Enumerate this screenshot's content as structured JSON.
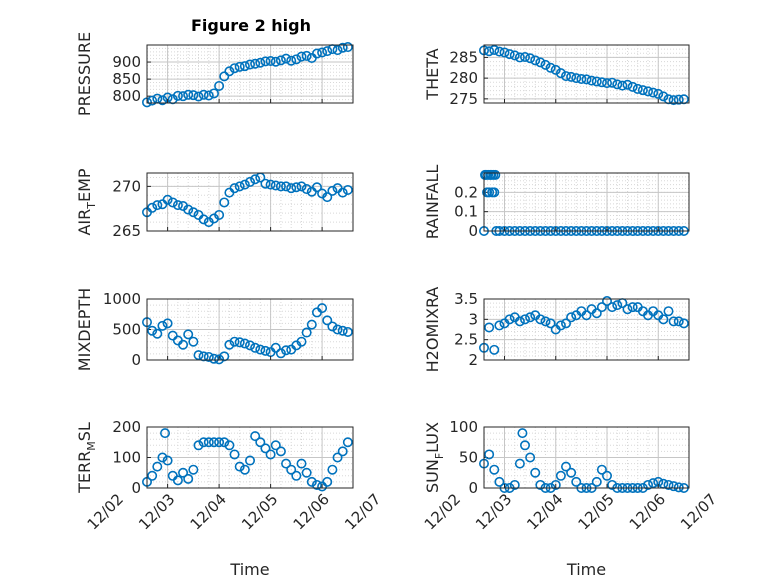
{
  "chart_data": {
    "type": "scatter",
    "title": "Figure 2 high",
    "marker": "o",
    "marker_color": "#0072BD",
    "grid": true,
    "minor_grid": true,
    "x_tick_labels": [
      "12/02",
      "12/03",
      "12/04",
      "12/05",
      "12/06",
      "12/07"
    ],
    "xlabel": "Time",
    "panels": [
      {
        "id": "pressure",
        "ylabel": "PRESSURE",
        "ylim": [
          780,
          950
        ],
        "yticks": [
          800,
          850,
          900
        ],
        "x": [
          2.6,
          2.7,
          2.8,
          2.9,
          3.0,
          3.1,
          3.2,
          3.3,
          3.4,
          3.5,
          3.6,
          3.7,
          3.8,
          3.9,
          4.0,
          4.1,
          4.2,
          4.3,
          4.4,
          4.5,
          4.6,
          4.7,
          4.8,
          4.9,
          5.0,
          5.1,
          5.2,
          5.3,
          5.4,
          5.5,
          5.6,
          5.7,
          5.8,
          5.9,
          6.0,
          6.1,
          6.2,
          6.3,
          6.4,
          6.5
        ],
        "y": [
          782,
          787,
          793,
          788,
          796,
          791,
          801,
          800,
          804,
          803,
          799,
          804,
          802,
          808,
          830,
          858,
          873,
          882,
          886,
          888,
          893,
          895,
          898,
          902,
          903,
          901,
          905,
          910,
          904,
          908,
          916,
          918,
          912,
          925,
          928,
          932,
          938,
          935,
          942,
          944
        ]
      },
      {
        "id": "theta",
        "ylabel": "THETA",
        "ylim": [
          274,
          288
        ],
        "yticks": [
          275,
          280,
          285
        ],
        "x": [
          2.6,
          2.7,
          2.8,
          2.9,
          3.0,
          3.1,
          3.2,
          3.3,
          3.4,
          3.5,
          3.6,
          3.7,
          3.8,
          3.9,
          4.0,
          4.1,
          4.2,
          4.3,
          4.4,
          4.5,
          4.6,
          4.7,
          4.8,
          4.9,
          5.0,
          5.1,
          5.2,
          5.3,
          5.4,
          5.5,
          5.6,
          5.7,
          5.8,
          5.9,
          6.0,
          6.1,
          6.2,
          6.3,
          6.4,
          6.5
        ],
        "y": [
          286.7,
          286.5,
          286.8,
          286.4,
          286.2,
          285.8,
          285.5,
          285.0,
          285.1,
          284.8,
          284.3,
          283.8,
          283.2,
          282.5,
          282.0,
          281.2,
          280.5,
          280.3,
          280.0,
          279.8,
          279.7,
          279.4,
          279.2,
          279.0,
          278.8,
          278.9,
          278.5,
          278.2,
          278.4,
          277.9,
          277.4,
          277.1,
          276.8,
          276.5,
          276.2,
          275.6,
          274.9,
          274.7,
          274.8,
          274.9
        ]
      },
      {
        "id": "air_temp",
        "ylabel": "AIR_TEMP",
        "ylabel_parts": [
          "AIR",
          "T",
          "EMP"
        ],
        "ylim": [
          265,
          271.5
        ],
        "yticks": [
          265,
          270
        ],
        "x": [
          2.6,
          2.7,
          2.8,
          2.9,
          3.0,
          3.1,
          3.2,
          3.3,
          3.4,
          3.5,
          3.6,
          3.7,
          3.8,
          3.9,
          4.0,
          4.1,
          4.2,
          4.3,
          4.4,
          4.5,
          4.6,
          4.7,
          4.8,
          4.9,
          5.0,
          5.1,
          5.2,
          5.3,
          5.4,
          5.5,
          5.6,
          5.7,
          5.8,
          5.9,
          6.0,
          6.1,
          6.2,
          6.3,
          6.4,
          6.5
        ],
        "y": [
          267.1,
          267.6,
          267.9,
          268.0,
          268.5,
          268.2,
          267.9,
          267.8,
          267.4,
          267.1,
          266.8,
          266.3,
          266.0,
          266.4,
          266.8,
          268.2,
          269.3,
          269.8,
          270.0,
          270.2,
          270.5,
          270.8,
          271.0,
          270.3,
          270.2,
          270.1,
          270.0,
          270.0,
          269.8,
          269.9,
          270.0,
          269.7,
          269.4,
          269.9,
          269.2,
          268.8,
          269.5,
          269.8,
          269.3,
          269.6
        ]
      },
      {
        "id": "rainfall",
        "ylabel": "RAINFALL",
        "ylim": [
          0,
          0.3
        ],
        "yticks": [
          0,
          0.1,
          0.2
        ],
        "x": [
          2.6,
          2.62,
          2.64,
          2.66,
          2.68,
          2.7,
          2.72,
          2.74,
          2.76,
          2.78,
          2.8,
          2.82,
          2.84,
          2.9,
          3.0,
          3.1,
          3.2,
          3.3,
          3.4,
          3.5,
          3.6,
          3.7,
          3.8,
          3.9,
          4.0,
          4.1,
          4.2,
          4.3,
          4.4,
          4.5,
          4.6,
          4.7,
          4.8,
          4.9,
          5.0,
          5.1,
          5.2,
          5.3,
          5.4,
          5.5,
          5.6,
          5.7,
          5.8,
          5.9,
          6.0,
          6.1,
          6.2,
          6.3,
          6.4,
          6.5
        ],
        "y": [
          0,
          0.29,
          0.29,
          0.2,
          0.29,
          0.2,
          0.29,
          0.29,
          0.2,
          0.29,
          0.2,
          0.29,
          0,
          0,
          0,
          0,
          0,
          0,
          0,
          0,
          0,
          0,
          0,
          0,
          0,
          0,
          0,
          0,
          0,
          0,
          0,
          0,
          0,
          0,
          0,
          0,
          0,
          0,
          0,
          0,
          0,
          0,
          0,
          0,
          0,
          0,
          0,
          0,
          0,
          0
        ]
      },
      {
        "id": "mixdepth",
        "ylabel": "MIXDEPTH",
        "ylim": [
          0,
          1000
        ],
        "yticks": [
          0,
          500,
          1000
        ],
        "x": [
          2.6,
          2.7,
          2.8,
          2.9,
          3.0,
          3.1,
          3.2,
          3.3,
          3.4,
          3.5,
          3.6,
          3.7,
          3.8,
          3.9,
          4.0,
          4.1,
          4.2,
          4.3,
          4.4,
          4.5,
          4.6,
          4.7,
          4.8,
          4.9,
          5.0,
          5.1,
          5.2,
          5.3,
          5.4,
          5.5,
          5.6,
          5.7,
          5.8,
          5.9,
          6.0,
          6.1,
          6.2,
          6.3,
          6.4,
          6.5
        ],
        "y": [
          620,
          480,
          430,
          560,
          600,
          400,
          320,
          250,
          420,
          300,
          80,
          60,
          50,
          20,
          10,
          60,
          250,
          300,
          290,
          270,
          240,
          200,
          170,
          150,
          130,
          200,
          110,
          160,
          170,
          240,
          300,
          450,
          580,
          780,
          850,
          650,
          550,
          500,
          480,
          460
        ]
      },
      {
        "id": "h2omixra",
        "ylabel": "H2OMIXRA",
        "ylim": [
          2,
          3.5
        ],
        "yticks": [
          2,
          2.5,
          3,
          3.5
        ],
        "x": [
          2.6,
          2.7,
          2.8,
          2.9,
          3.0,
          3.1,
          3.2,
          3.3,
          3.4,
          3.5,
          3.6,
          3.7,
          3.8,
          3.9,
          4.0,
          4.1,
          4.2,
          4.3,
          4.4,
          4.5,
          4.6,
          4.7,
          4.8,
          4.9,
          5.0,
          5.1,
          5.2,
          5.3,
          5.4,
          5.5,
          5.6,
          5.7,
          5.8,
          5.9,
          6.0,
          6.1,
          6.2,
          6.3,
          6.4,
          6.5
        ],
        "y": [
          2.3,
          2.8,
          2.25,
          2.85,
          2.9,
          3.0,
          3.05,
          2.95,
          3.0,
          3.05,
          3.1,
          3.0,
          2.95,
          2.9,
          2.75,
          2.85,
          2.9,
          3.05,
          3.1,
          3.2,
          3.1,
          3.25,
          3.15,
          3.3,
          3.45,
          3.3,
          3.35,
          3.4,
          3.25,
          3.3,
          3.3,
          3.2,
          3.1,
          3.2,
          3.1,
          3.0,
          3.2,
          2.95,
          2.95,
          2.9
        ]
      },
      {
        "id": "terr_msl",
        "ylabel": "TERR_MSL",
        "ylabel_parts": [
          "TERR",
          "M",
          "SL"
        ],
        "ylim": [
          0,
          200
        ],
        "yticks": [
          0,
          100,
          200
        ],
        "x": [
          2.6,
          2.7,
          2.8,
          2.9,
          2.95,
          3.0,
          3.1,
          3.2,
          3.3,
          3.4,
          3.5,
          3.6,
          3.7,
          3.8,
          3.9,
          4.0,
          4.1,
          4.2,
          4.3,
          4.4,
          4.5,
          4.6,
          4.7,
          4.8,
          4.9,
          5.0,
          5.1,
          5.2,
          5.3,
          5.4,
          5.5,
          5.6,
          5.7,
          5.8,
          5.9,
          6.0,
          6.1,
          6.2,
          6.3,
          6.4,
          6.5
        ],
        "y": [
          20,
          40,
          70,
          100,
          180,
          90,
          40,
          25,
          50,
          30,
          60,
          140,
          150,
          150,
          150,
          150,
          150,
          140,
          110,
          70,
          60,
          90,
          170,
          150,
          130,
          110,
          140,
          120,
          80,
          60,
          40,
          80,
          50,
          20,
          10,
          5,
          20,
          60,
          100,
          120,
          150
        ]
      },
      {
        "id": "sun_flux",
        "ylabel": "SUN_FLUX",
        "ylabel_parts": [
          "SUN",
          "F",
          "LUX"
        ],
        "ylim": [
          0,
          100
        ],
        "yticks": [
          0,
          50,
          100
        ],
        "x": [
          2.6,
          2.7,
          2.8,
          2.9,
          3.0,
          3.1,
          3.2,
          3.3,
          3.35,
          3.4,
          3.5,
          3.6,
          3.7,
          3.8,
          3.9,
          4.0,
          4.1,
          4.2,
          4.3,
          4.4,
          4.5,
          4.6,
          4.7,
          4.8,
          4.9,
          5.0,
          5.1,
          5.2,
          5.3,
          5.4,
          5.5,
          5.6,
          5.7,
          5.8,
          5.9,
          6.0,
          6.1,
          6.2,
          6.3,
          6.4,
          6.5
        ],
        "y": [
          40,
          55,
          30,
          10,
          0,
          0,
          5,
          40,
          90,
          70,
          50,
          25,
          5,
          0,
          0,
          5,
          20,
          35,
          25,
          10,
          0,
          0,
          0,
          10,
          30,
          20,
          5,
          0,
          0,
          0,
          0,
          0,
          0,
          5,
          8,
          10,
          7,
          5,
          3,
          1,
          0
        ]
      }
    ]
  }
}
